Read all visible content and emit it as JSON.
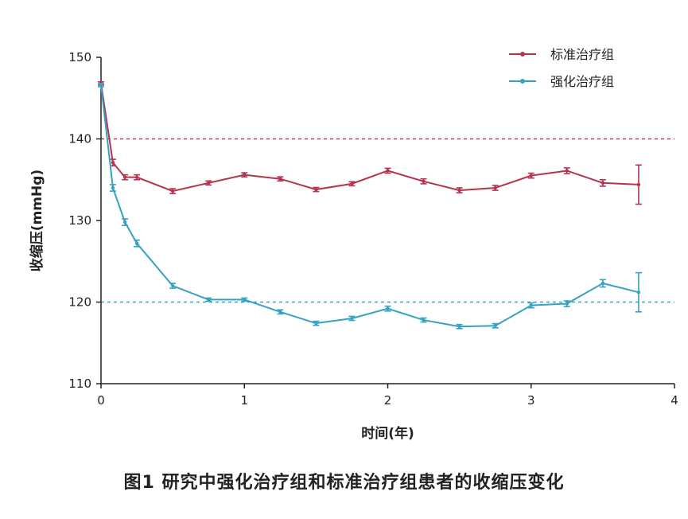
{
  "figure_caption": "图1 研究中强化治疗组和标准治疗组患者的收缩压变化",
  "chart_data": {
    "type": "line",
    "title": "",
    "xlabel": "时间(年)",
    "ylabel": "收缩压(mmHg)",
    "xlim": [
      0,
      4
    ],
    "ylim": [
      110,
      150
    ],
    "xticks": [
      0,
      1,
      2,
      3,
      4
    ],
    "yticks": [
      110,
      120,
      130,
      140,
      150
    ],
    "grid": false,
    "legend_position": "top-right",
    "reference_lines": [
      {
        "y": 140,
        "style": "dashed",
        "color": "#c0394b"
      },
      {
        "y": 120,
        "style": "dashed",
        "color": "#3aa6c4"
      }
    ],
    "x": [
      0,
      0.083,
      0.167,
      0.25,
      0.5,
      0.75,
      1.0,
      1.25,
      1.5,
      1.75,
      2.0,
      2.25,
      2.5,
      2.75,
      3.0,
      3.25,
      3.5,
      3.75
    ],
    "series": [
      {
        "name": "标准治疗组",
        "color": "#b5344d",
        "values": [
          146.8,
          137.1,
          135.3,
          135.3,
          133.6,
          134.6,
          135.6,
          135.1,
          133.8,
          134.5,
          136.1,
          134.8,
          133.7,
          134.0,
          135.5,
          136.1,
          134.6,
          134.4
        ],
        "errors": [
          0.2,
          0.4,
          0.3,
          0.3,
          0.3,
          0.25,
          0.25,
          0.25,
          0.25,
          0.25,
          0.3,
          0.3,
          0.3,
          0.3,
          0.3,
          0.35,
          0.4,
          2.4
        ]
      },
      {
        "name": "强化治疗组",
        "color": "#36a2c2",
        "values": [
          146.6,
          134.0,
          129.8,
          127.2,
          122.0,
          120.3,
          120.3,
          118.8,
          117.4,
          118.0,
          119.2,
          117.8,
          117.0,
          117.1,
          119.6,
          119.8,
          122.3,
          121.2
        ],
        "errors": [
          0.2,
          0.4,
          0.4,
          0.4,
          0.3,
          0.2,
          0.2,
          0.25,
          0.25,
          0.25,
          0.3,
          0.25,
          0.25,
          0.25,
          0.3,
          0.35,
          0.45,
          2.4
        ]
      }
    ]
  }
}
